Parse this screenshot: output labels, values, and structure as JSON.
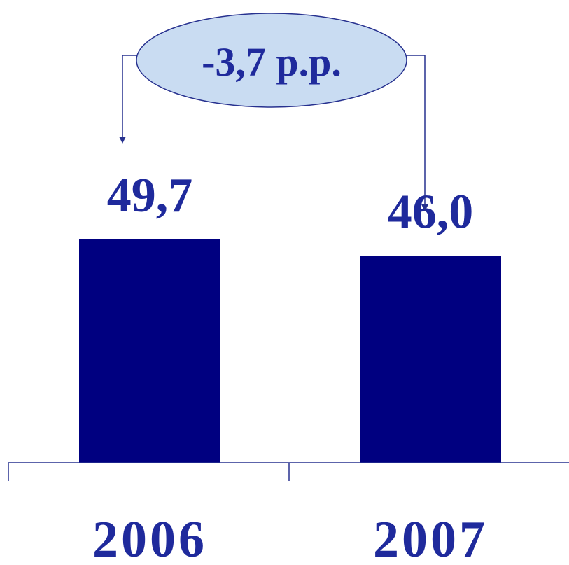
{
  "colors": {
    "bar": "#000080",
    "label": "#1f2a9c",
    "bubble_fill": "#c9dcf2",
    "bubble_stroke": "#27318f",
    "connector": "#27318f",
    "axis": "#27318f"
  },
  "chart_data": {
    "type": "bar",
    "categories": [
      "2006",
      "2007"
    ],
    "values": [
      49.7,
      46.0
    ],
    "data_labels": [
      "49,7",
      "46,0"
    ],
    "annotation": "-3,7 p.p.",
    "title": "",
    "xlabel": "",
    "ylabel": "",
    "grid": false,
    "legend": "none"
  }
}
